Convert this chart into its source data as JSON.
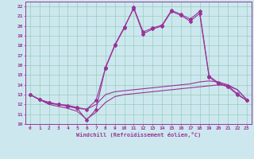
{
  "xlabel": "Windchill (Refroidissement éolien,°C)",
  "xlim": [
    -0.5,
    23.5
  ],
  "ylim": [
    10,
    22.5
  ],
  "xtick_labels": [
    "0",
    "1",
    "2",
    "3",
    "4",
    "5",
    "6",
    "7",
    "8",
    "9",
    "10",
    "11",
    "12",
    "13",
    "14",
    "15",
    "16",
    "17",
    "18",
    "19",
    "20",
    "21",
    "22",
    "23"
  ],
  "ytick_labels": [
    "10",
    "11",
    "12",
    "13",
    "14",
    "15",
    "16",
    "17",
    "18",
    "19",
    "20",
    "21",
    "22"
  ],
  "bg_color": "#cce8ee",
  "line_color": "#993399",
  "grid_color": "#99ccbb",
  "series": [
    [
      13.0,
      12.5,
      12.0,
      11.8,
      11.6,
      11.3,
      10.5,
      11.2,
      12.2,
      12.8,
      13.0,
      13.1,
      13.2,
      13.3,
      13.4,
      13.5,
      13.6,
      13.7,
      13.8,
      13.9,
      14.0,
      13.9,
      13.5,
      12.5
    ],
    [
      13.0,
      12.5,
      12.1,
      12.0,
      11.9,
      11.6,
      11.5,
      12.0,
      13.0,
      13.3,
      13.4,
      13.5,
      13.6,
      13.7,
      13.8,
      13.9,
      14.0,
      14.1,
      14.3,
      14.4,
      14.3,
      14.0,
      13.5,
      12.5
    ],
    [
      13.0,
      12.5,
      12.2,
      12.0,
      11.8,
      11.6,
      10.4,
      11.5,
      15.8,
      18.1,
      19.9,
      21.8,
      19.2,
      19.7,
      20.0,
      21.5,
      21.1,
      20.5,
      21.3,
      14.8,
      14.1,
      13.8,
      13.0,
      12.4
    ],
    [
      13.0,
      12.5,
      12.2,
      12.0,
      11.9,
      11.7,
      11.5,
      12.4,
      15.7,
      18.0,
      19.8,
      21.9,
      19.4,
      19.8,
      20.1,
      21.6,
      21.2,
      20.7,
      21.5,
      14.9,
      14.2,
      13.9,
      13.1,
      12.4
    ]
  ],
  "markers": [
    false,
    false,
    true,
    true
  ],
  "marker_symbol": "D",
  "marker_size": 2.0,
  "linewidth": 0.8
}
